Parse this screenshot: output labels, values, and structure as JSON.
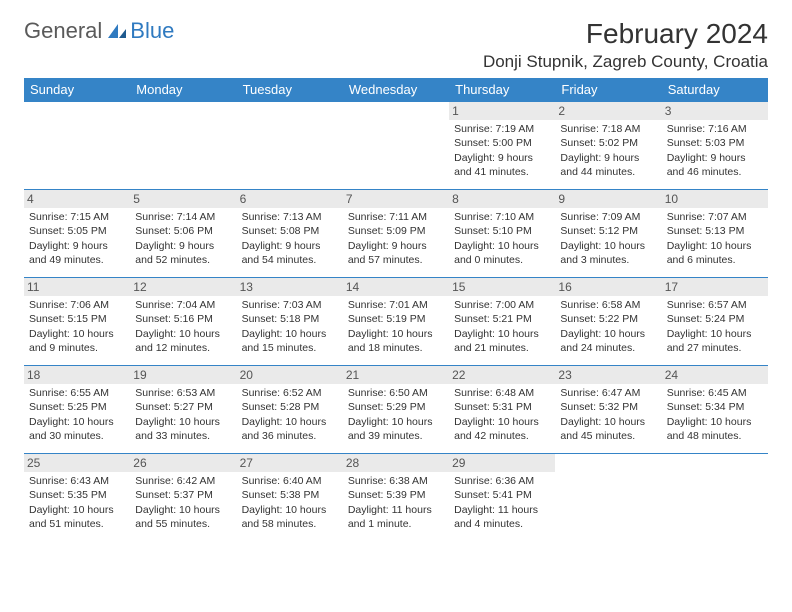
{
  "brand": {
    "general": "General",
    "blue": "Blue"
  },
  "title": "February 2024",
  "location": "Donji Stupnik, Zagreb County, Croatia",
  "colors": {
    "header_bg": "#3584c7",
    "header_text": "#ffffff",
    "border": "#3584c7",
    "logo_gray": "#5a5a5a",
    "logo_blue": "#2f7ac0",
    "shade_bg": "#eaeaea"
  },
  "weekdays": [
    "Sunday",
    "Monday",
    "Tuesday",
    "Wednesday",
    "Thursday",
    "Friday",
    "Saturday"
  ],
  "weeks": [
    [
      null,
      null,
      null,
      null,
      {
        "n": "1",
        "sr": "Sunrise: 7:19 AM",
        "ss": "Sunset: 5:00 PM",
        "dl": "Daylight: 9 hours and 41 minutes."
      },
      {
        "n": "2",
        "sr": "Sunrise: 7:18 AM",
        "ss": "Sunset: 5:02 PM",
        "dl": "Daylight: 9 hours and 44 minutes."
      },
      {
        "n": "3",
        "sr": "Sunrise: 7:16 AM",
        "ss": "Sunset: 5:03 PM",
        "dl": "Daylight: 9 hours and 46 minutes."
      }
    ],
    [
      {
        "n": "4",
        "sr": "Sunrise: 7:15 AM",
        "ss": "Sunset: 5:05 PM",
        "dl": "Daylight: 9 hours and 49 minutes."
      },
      {
        "n": "5",
        "sr": "Sunrise: 7:14 AM",
        "ss": "Sunset: 5:06 PM",
        "dl": "Daylight: 9 hours and 52 minutes."
      },
      {
        "n": "6",
        "sr": "Sunrise: 7:13 AM",
        "ss": "Sunset: 5:08 PM",
        "dl": "Daylight: 9 hours and 54 minutes."
      },
      {
        "n": "7",
        "sr": "Sunrise: 7:11 AM",
        "ss": "Sunset: 5:09 PM",
        "dl": "Daylight: 9 hours and 57 minutes."
      },
      {
        "n": "8",
        "sr": "Sunrise: 7:10 AM",
        "ss": "Sunset: 5:10 PM",
        "dl": "Daylight: 10 hours and 0 minutes."
      },
      {
        "n": "9",
        "sr": "Sunrise: 7:09 AM",
        "ss": "Sunset: 5:12 PM",
        "dl": "Daylight: 10 hours and 3 minutes."
      },
      {
        "n": "10",
        "sr": "Sunrise: 7:07 AM",
        "ss": "Sunset: 5:13 PM",
        "dl": "Daylight: 10 hours and 6 minutes."
      }
    ],
    [
      {
        "n": "11",
        "sr": "Sunrise: 7:06 AM",
        "ss": "Sunset: 5:15 PM",
        "dl": "Daylight: 10 hours and 9 minutes."
      },
      {
        "n": "12",
        "sr": "Sunrise: 7:04 AM",
        "ss": "Sunset: 5:16 PM",
        "dl": "Daylight: 10 hours and 12 minutes."
      },
      {
        "n": "13",
        "sr": "Sunrise: 7:03 AM",
        "ss": "Sunset: 5:18 PM",
        "dl": "Daylight: 10 hours and 15 minutes."
      },
      {
        "n": "14",
        "sr": "Sunrise: 7:01 AM",
        "ss": "Sunset: 5:19 PM",
        "dl": "Daylight: 10 hours and 18 minutes."
      },
      {
        "n": "15",
        "sr": "Sunrise: 7:00 AM",
        "ss": "Sunset: 5:21 PM",
        "dl": "Daylight: 10 hours and 21 minutes."
      },
      {
        "n": "16",
        "sr": "Sunrise: 6:58 AM",
        "ss": "Sunset: 5:22 PM",
        "dl": "Daylight: 10 hours and 24 minutes."
      },
      {
        "n": "17",
        "sr": "Sunrise: 6:57 AM",
        "ss": "Sunset: 5:24 PM",
        "dl": "Daylight: 10 hours and 27 minutes."
      }
    ],
    [
      {
        "n": "18",
        "sr": "Sunrise: 6:55 AM",
        "ss": "Sunset: 5:25 PM",
        "dl": "Daylight: 10 hours and 30 minutes."
      },
      {
        "n": "19",
        "sr": "Sunrise: 6:53 AM",
        "ss": "Sunset: 5:27 PM",
        "dl": "Daylight: 10 hours and 33 minutes."
      },
      {
        "n": "20",
        "sr": "Sunrise: 6:52 AM",
        "ss": "Sunset: 5:28 PM",
        "dl": "Daylight: 10 hours and 36 minutes."
      },
      {
        "n": "21",
        "sr": "Sunrise: 6:50 AM",
        "ss": "Sunset: 5:29 PM",
        "dl": "Daylight: 10 hours and 39 minutes."
      },
      {
        "n": "22",
        "sr": "Sunrise: 6:48 AM",
        "ss": "Sunset: 5:31 PM",
        "dl": "Daylight: 10 hours and 42 minutes."
      },
      {
        "n": "23",
        "sr": "Sunrise: 6:47 AM",
        "ss": "Sunset: 5:32 PM",
        "dl": "Daylight: 10 hours and 45 minutes."
      },
      {
        "n": "24",
        "sr": "Sunrise: 6:45 AM",
        "ss": "Sunset: 5:34 PM",
        "dl": "Daylight: 10 hours and 48 minutes."
      }
    ],
    [
      {
        "n": "25",
        "sr": "Sunrise: 6:43 AM",
        "ss": "Sunset: 5:35 PM",
        "dl": "Daylight: 10 hours and 51 minutes."
      },
      {
        "n": "26",
        "sr": "Sunrise: 6:42 AM",
        "ss": "Sunset: 5:37 PM",
        "dl": "Daylight: 10 hours and 55 minutes."
      },
      {
        "n": "27",
        "sr": "Sunrise: 6:40 AM",
        "ss": "Sunset: 5:38 PM",
        "dl": "Daylight: 10 hours and 58 minutes."
      },
      {
        "n": "28",
        "sr": "Sunrise: 6:38 AM",
        "ss": "Sunset: 5:39 PM",
        "dl": "Daylight: 11 hours and 1 minute."
      },
      {
        "n": "29",
        "sr": "Sunrise: 6:36 AM",
        "ss": "Sunset: 5:41 PM",
        "dl": "Daylight: 11 hours and 4 minutes."
      },
      null,
      null
    ]
  ]
}
